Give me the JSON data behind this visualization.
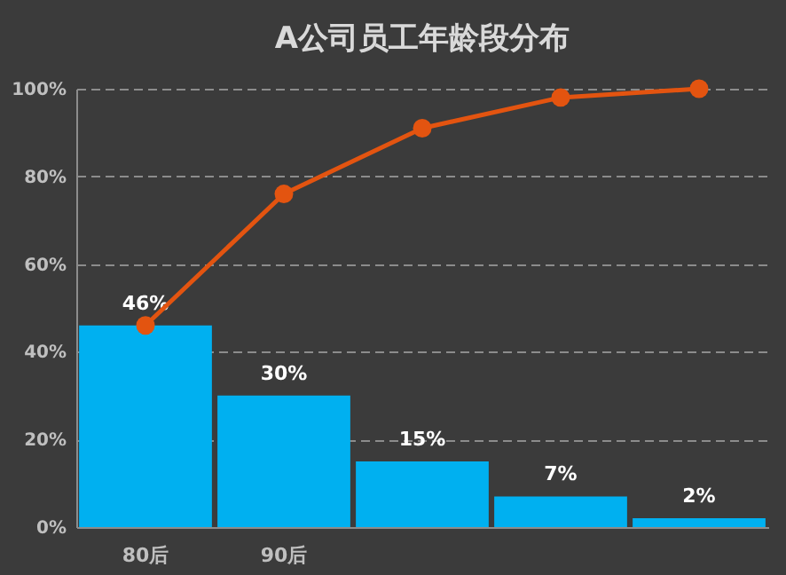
{
  "chart_data": {
    "type": "bar",
    "title": "A公司员工年龄段分布",
    "categories": [
      "80后",
      "90后",
      null,
      null,
      null
    ],
    "series": [
      {
        "color": "#00b0f0",
        "values": [
          46,
          30,
          15,
          7,
          2
        ],
        "value_labels": [
          "46%",
          "30%",
          "15%",
          "7%",
          "2%"
        ]
      },
      {
        "type": "line",
        "color": "#e35410",
        "values": [
          46,
          76,
          91,
          98,
          100
        ],
        "marker": "circle",
        "line_style": "solid"
      }
    ],
    "ylim": [
      0,
      100
    ],
    "yticks": [
      {
        "value": 0,
        "label": "0%"
      },
      {
        "value": 20,
        "label": "20%"
      },
      {
        "value": 40,
        "label": "40%"
      },
      {
        "value": 60,
        "label": "60%"
      },
      {
        "value": 80,
        "label": "80%"
      },
      {
        "value": 100,
        "label": "100%"
      }
    ],
    "grid": "y"
  }
}
